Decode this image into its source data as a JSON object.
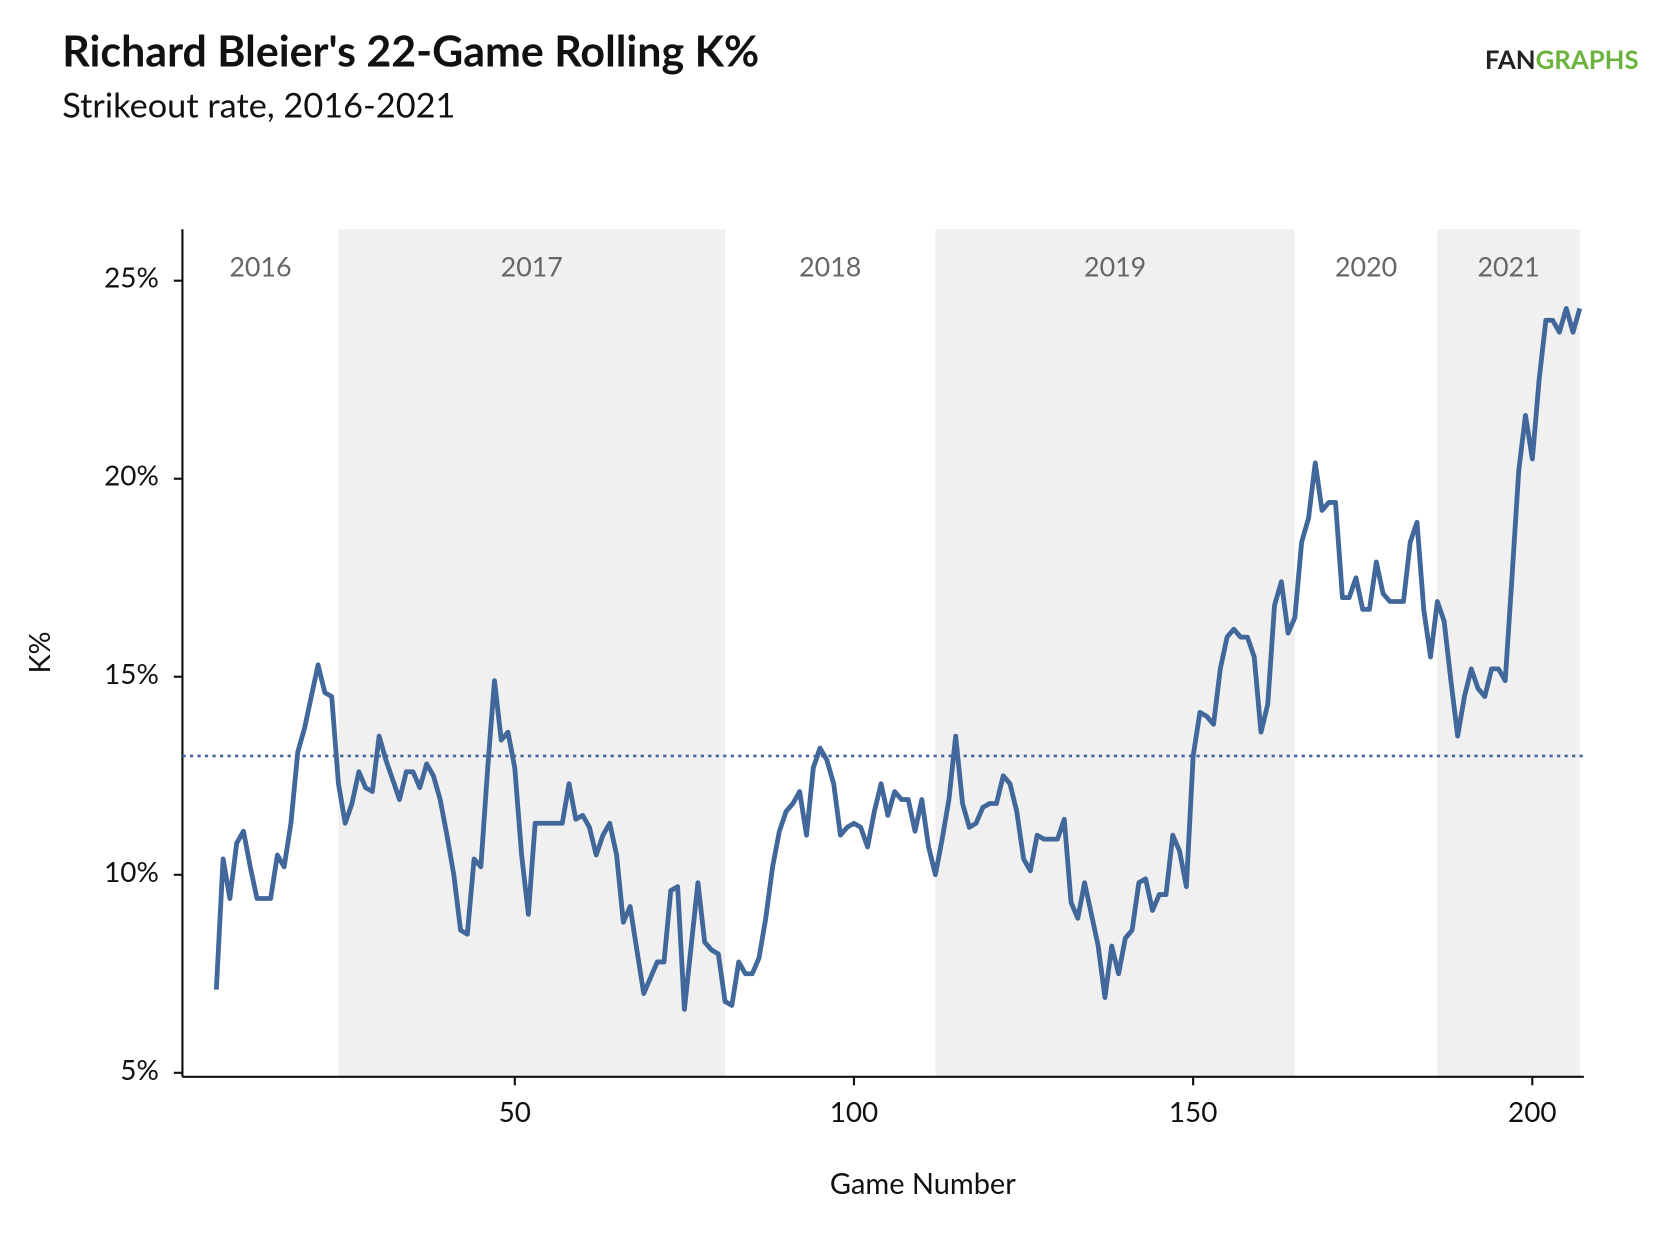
{
  "chart_data": {
    "type": "line",
    "title": "Richard Bleier's 22-Game Rolling K%",
    "subtitle": "Strikeout rate, 2016-2021",
    "logo": [
      "FAN",
      "GRAPHS"
    ],
    "x_label": "Game Number",
    "y_label": "K%",
    "color": "#42679a",
    "band_color": "#f0f0f0",
    "x": [
      6,
      7,
      8,
      9,
      10,
      11,
      12,
      14,
      15,
      16,
      17,
      18,
      19,
      20,
      21,
      22,
      23,
      24,
      25,
      26,
      27,
      28,
      29,
      30,
      31,
      32,
      33,
      34,
      35,
      36,
      37,
      38,
      39,
      40,
      41,
      42,
      43,
      44,
      45,
      46,
      47,
      48,
      49,
      50,
      51,
      52,
      53,
      57,
      58,
      59,
      60,
      61,
      62,
      63,
      64,
      65,
      66,
      67,
      68,
      69,
      71,
      72,
      73,
      74,
      75,
      76,
      77,
      78,
      79,
      80,
      81,
      82,
      83,
      84,
      85,
      86,
      87,
      88,
      89,
      90,
      91,
      92,
      93,
      94,
      95,
      96,
      97,
      98,
      99,
      100,
      101,
      102,
      103,
      104,
      105,
      106,
      107,
      108,
      109,
      110,
      111,
      112,
      113,
      114,
      115,
      116,
      117,
      118,
      119,
      120,
      121,
      122,
      123,
      124,
      125,
      126,
      127,
      128,
      130,
      131,
      132,
      133,
      134,
      135,
      136,
      137,
      138,
      139,
      140,
      141,
      142,
      143,
      144,
      145,
      146,
      147,
      148,
      149,
      150,
      151,
      152,
      153,
      154,
      155,
      156,
      157,
      158,
      159,
      160,
      161,
      162,
      163,
      164,
      165,
      166,
      167,
      168,
      169,
      170,
      171,
      172,
      173,
      174,
      175,
      176,
      177,
      178,
      179,
      181,
      182,
      183,
      184,
      185,
      186,
      187,
      188,
      189,
      190,
      191,
      192,
      193,
      194,
      195,
      196,
      197,
      198,
      199,
      200,
      201,
      202,
      203,
      204,
      205,
      206,
      207
    ],
    "values": [
      7.1,
      10.4,
      9.4,
      10.8,
      11.1,
      10.2,
      9.4,
      9.4,
      10.5,
      10.2,
      11.3,
      13.1,
      13.7,
      14.5,
      15.3,
      14.6,
      14.5,
      12.3,
      11.3,
      11.8,
      12.6,
      12.2,
      12.1,
      13.5,
      12.9,
      12.4,
      11.9,
      12.6,
      12.6,
      12.2,
      12.8,
      12.5,
      11.9,
      11.0,
      10.0,
      8.6,
      8.5,
      10.4,
      10.2,
      12.7,
      14.9,
      13.4,
      13.6,
      12.7,
      10.5,
      9.0,
      11.3,
      11.3,
      12.3,
      11.4,
      11.5,
      11.2,
      10.5,
      11.0,
      11.3,
      10.5,
      8.8,
      9.2,
      8.1,
      7.0,
      7.8,
      7.8,
      9.6,
      9.7,
      6.6,
      8.2,
      9.8,
      8.3,
      8.1,
      8.0,
      6.8,
      6.7,
      7.8,
      7.5,
      7.5,
      7.9,
      8.9,
      10.2,
      11.1,
      11.6,
      11.8,
      12.1,
      11.0,
      12.7,
      13.2,
      12.9,
      12.3,
      11.0,
      11.2,
      11.3,
      11.2,
      10.7,
      11.6,
      12.3,
      11.5,
      12.1,
      11.9,
      11.9,
      11.1,
      11.9,
      10.7,
      10.0,
      10.9,
      11.9,
      13.5,
      11.8,
      11.2,
      11.3,
      11.7,
      11.8,
      11.8,
      12.5,
      12.3,
      11.6,
      10.4,
      10.1,
      11.0,
      10.9,
      10.9,
      11.4,
      9.3,
      8.9,
      9.8,
      9.0,
      8.2,
      6.9,
      8.2,
      7.5,
      8.4,
      8.6,
      9.8,
      9.9,
      9.1,
      9.5,
      9.5,
      11.0,
      10.6,
      9.7,
      13.0,
      14.1,
      14.0,
      13.8,
      15.2,
      16.0,
      16.2,
      16.0,
      16.0,
      15.5,
      13.6,
      14.3,
      16.8,
      17.4,
      16.1,
      16.5,
      18.4,
      19.0,
      20.4,
      19.2,
      19.4,
      19.4,
      17.0,
      17.0,
      17.5,
      16.7,
      16.7,
      17.9,
      17.1,
      16.9,
      16.9,
      18.4,
      18.9,
      16.7,
      15.5,
      16.9,
      16.4,
      14.9,
      13.5,
      14.5,
      15.2,
      14.7,
      14.5,
      15.2,
      15.2,
      14.9,
      17.5,
      20.2,
      21.6,
      20.5,
      22.5,
      24.0,
      24.0,
      23.7,
      24.3,
      23.7,
      24.3
    ],
    "reference_line": 13.0,
    "seasons": [
      {
        "label": "2016",
        "start": 1,
        "end": 24,
        "shaded": false
      },
      {
        "label": "2017",
        "start": 24,
        "end": 81,
        "shaded": true
      },
      {
        "label": "2018",
        "start": 81,
        "end": 112,
        "shaded": false
      },
      {
        "label": "2019",
        "start": 112,
        "end": 165,
        "shaded": true
      },
      {
        "label": "2020",
        "start": 165,
        "end": 186,
        "shaded": false
      },
      {
        "label": "2021",
        "start": 186,
        "end": 207,
        "shaded": true
      }
    ],
    "xlim": [
      1,
      207.6
    ],
    "ylim": [
      4.9,
      26.3
    ],
    "xticks": [
      50,
      100,
      150,
      200
    ],
    "yticks": [
      {
        "value": 5,
        "label": "5%"
      },
      {
        "value": 10,
        "label": "10%"
      },
      {
        "value": 15,
        "label": "15%"
      },
      {
        "value": 20,
        "label": "20%"
      },
      {
        "value": 25,
        "label": "25%"
      }
    ]
  }
}
